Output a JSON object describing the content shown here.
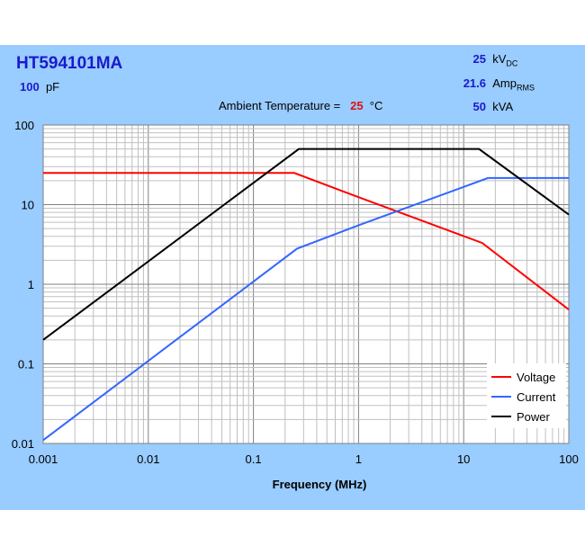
{
  "header": {
    "part_number": "HT594101MA",
    "capacitance_value": "100",
    "capacitance_unit": "pF",
    "ratings": [
      {
        "value": "25",
        "unit": "kV",
        "sub": "DC"
      },
      {
        "value": "21.6",
        "unit": "Amp",
        "sub": "RMS"
      },
      {
        "value": "50",
        "unit": "kVA",
        "sub": ""
      }
    ],
    "ambient_label": "Ambient Temperature =",
    "ambient_value": "25",
    "ambient_unit": "°C"
  },
  "chart_data": {
    "type": "line",
    "xlabel": "Frequency (MHz)",
    "ylabel": "",
    "xscale": "log",
    "yscale": "log",
    "xlim": [
      0.001,
      100
    ],
    "ylim": [
      0.01,
      100
    ],
    "xticks": [
      "0.001",
      "0.01",
      "0.1",
      "1",
      "10",
      "100"
    ],
    "yticks": [
      "0.01",
      "0.1",
      "1",
      "10",
      "100"
    ],
    "grid": true,
    "legend_position": "bottom-right",
    "series": [
      {
        "name": "Voltage",
        "color": "#ff0000",
        "points": [
          [
            0.001,
            25
          ],
          [
            0.245,
            25
          ],
          [
            1,
            12.4
          ],
          [
            15,
            3.3
          ],
          [
            100,
            0.48
          ]
        ]
      },
      {
        "name": "Current",
        "color": "#3366ff",
        "points": [
          [
            0.001,
            0.011
          ],
          [
            0.26,
            2.8
          ],
          [
            1,
            5.5
          ],
          [
            17,
            21.6
          ],
          [
            100,
            21.6
          ]
        ]
      },
      {
        "name": "Power",
        "color": "#000000",
        "points": [
          [
            0.001,
            0.2
          ],
          [
            0.27,
            50
          ],
          [
            14,
            50
          ],
          [
            100,
            7.5
          ]
        ]
      }
    ]
  }
}
